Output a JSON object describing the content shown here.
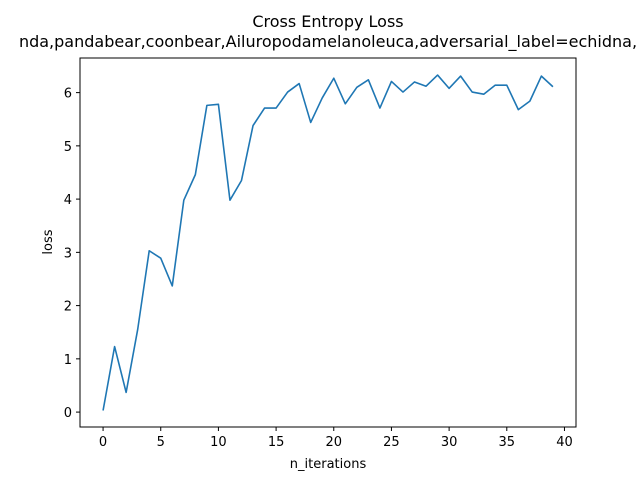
{
  "chart_data": {
    "type": "line",
    "title": "Cross Entropy Loss",
    "subtitle": "nda,pandabear,coonbear,Ailuropodamelanoleuca,adversarial_label=echidna,",
    "xlabel": "n_iterations",
    "ylabel": "loss",
    "xlim": [
      -2,
      41
    ],
    "ylim": [
      -0.28,
      6.65
    ],
    "xticks": [
      0,
      5,
      10,
      15,
      20,
      25,
      30,
      35,
      40
    ],
    "yticks": [
      0,
      1,
      2,
      3,
      4,
      5,
      6
    ],
    "grid": false,
    "color": "#1f77b4",
    "x": [
      0,
      1,
      2,
      3,
      4,
      5,
      6,
      7,
      8,
      9,
      10,
      11,
      12,
      13,
      14,
      15,
      16,
      17,
      18,
      19,
      20,
      21,
      22,
      23,
      24,
      25,
      26,
      27,
      28,
      29,
      30,
      31,
      32,
      33,
      34,
      35,
      36,
      37,
      38,
      39
    ],
    "y": [
      0.03,
      1.23,
      0.37,
      1.55,
      3.03,
      2.89,
      2.37,
      3.98,
      4.46,
      5.76,
      5.78,
      3.98,
      4.35,
      5.38,
      5.71,
      5.71,
      6.01,
      6.17,
      5.44,
      5.9,
      6.27,
      5.79,
      6.1,
      6.24,
      5.71,
      6.21,
      6.01,
      6.2,
      6.12,
      6.33,
      6.08,
      6.31,
      6.01,
      5.97,
      6.14,
      6.14,
      5.68,
      5.84,
      6.31,
      6.11
    ]
  }
}
